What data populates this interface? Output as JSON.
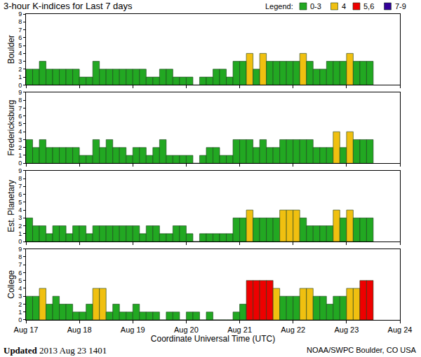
{
  "chart_data": {
    "type": "bar",
    "title": "3-hour K-indices for Last 7 days",
    "x_label": "Coordinate Universal Time (UTC)",
    "legend_label": "Legend:",
    "legend": "top right",
    "grid": false,
    "color_scale": [
      {
        "label": "0-3",
        "min": 0,
        "max": 3,
        "color": "#22a822"
      },
      {
        "label": "4",
        "min": 4,
        "max": 4,
        "color": "#f0c010"
      },
      {
        "label": "5,6",
        "min": 5,
        "max": 6,
        "color": "#ee0000"
      },
      {
        "label": "7-9",
        "min": 7,
        "max": 9,
        "color": "#330099"
      }
    ],
    "footer_left_bold": "Updated",
    "footer_left": "2013 Aug 23 1401",
    "footer_right": "NOAA/SWPC Boulder, CO USA",
    "x": [
      0,
      0.125,
      0.25,
      0.375,
      0.5,
      0.625,
      0.75,
      0.875,
      1,
      1.125,
      1.25,
      1.375,
      1.5,
      1.625,
      1.75,
      1.875,
      2,
      2.125,
      2.25,
      2.375,
      2.5,
      2.625,
      2.75,
      2.875,
      3,
      3.125,
      3.25,
      3.375,
      3.5,
      3.625,
      3.75,
      3.875,
      4,
      4.125,
      4.25,
      4.375,
      4.5,
      4.625,
      4.75,
      4.875,
      5,
      5.125,
      5.25,
      5.375,
      5.5,
      5.625,
      5.75,
      5.875,
      6,
      6.125,
      6.25,
      6.375,
      6.5,
      6.625,
      6.75,
      6.875
    ],
    "xlim": [
      0,
      7
    ],
    "xticks": [
      {
        "value": 0,
        "label": "Aug 17"
      },
      {
        "value": 1,
        "label": "Aug 18"
      },
      {
        "value": 2,
        "label": "Aug 19"
      },
      {
        "value": 3,
        "label": "Aug 20"
      },
      {
        "value": 4,
        "label": "Aug 21"
      },
      {
        "value": 5,
        "label": "Aug 22"
      },
      {
        "value": 6,
        "label": "Aug 23"
      },
      {
        "value": 7,
        "label": "Aug 24"
      }
    ],
    "ylim": [
      0,
      9
    ],
    "yticks": [
      0,
      1,
      2,
      3,
      4,
      5,
      6,
      7,
      8,
      9
    ],
    "series": [
      {
        "name": "Boulder",
        "values": [
          2,
          2,
          3,
          2,
          2,
          2,
          2,
          2,
          1,
          1,
          3,
          2,
          2,
          2,
          2,
          2,
          2,
          2,
          1,
          1,
          2,
          2,
          1,
          1,
          1,
          0,
          1,
          1,
          2,
          2,
          1,
          3,
          3,
          4,
          2,
          4,
          3,
          3,
          3,
          3,
          3,
          4,
          3,
          2,
          2,
          3,
          3,
          3,
          4,
          3,
          3,
          3,
          null,
          null,
          null,
          null
        ]
      },
      {
        "name": "Fredericksburg",
        "values": [
          3,
          2,
          3,
          2,
          2,
          2,
          2,
          2,
          1,
          1,
          3,
          2,
          3,
          2,
          2,
          1,
          2,
          2,
          1,
          2,
          3,
          1,
          1,
          1,
          1,
          0,
          1,
          2,
          2,
          1,
          1,
          3,
          3,
          3,
          2,
          3,
          2,
          2,
          3,
          3,
          3,
          3,
          3,
          2,
          2,
          2,
          4,
          2,
          4,
          3,
          3,
          3,
          null,
          null,
          null,
          null
        ]
      },
      {
        "name": "Est. Planetary",
        "values": [
          3,
          2,
          2,
          1,
          2,
          2,
          1,
          2,
          2,
          1,
          2,
          2,
          2,
          2,
          2,
          2,
          2,
          1,
          2,
          2,
          1,
          1,
          2,
          2,
          1,
          0,
          1,
          1,
          1,
          1,
          1,
          3,
          3,
          4,
          3,
          3,
          3,
          3,
          4,
          4,
          4,
          3,
          2,
          2,
          2,
          2,
          4,
          3,
          4,
          3,
          3,
          3,
          null,
          null,
          null,
          null
        ]
      },
      {
        "name": "College",
        "values": [
          3,
          3,
          4,
          2,
          3,
          2,
          2,
          1,
          1,
          2,
          4,
          4,
          1,
          2,
          1,
          1,
          2,
          1,
          1,
          1,
          0,
          1,
          1,
          0,
          1,
          1,
          0,
          1,
          0,
          0,
          0,
          1,
          2,
          5,
          5,
          5,
          5,
          4,
          3,
          3,
          3,
          4,
          4,
          3,
          3,
          2,
          3,
          3,
          4,
          4,
          5,
          5,
          null,
          null,
          null,
          null
        ]
      }
    ]
  }
}
